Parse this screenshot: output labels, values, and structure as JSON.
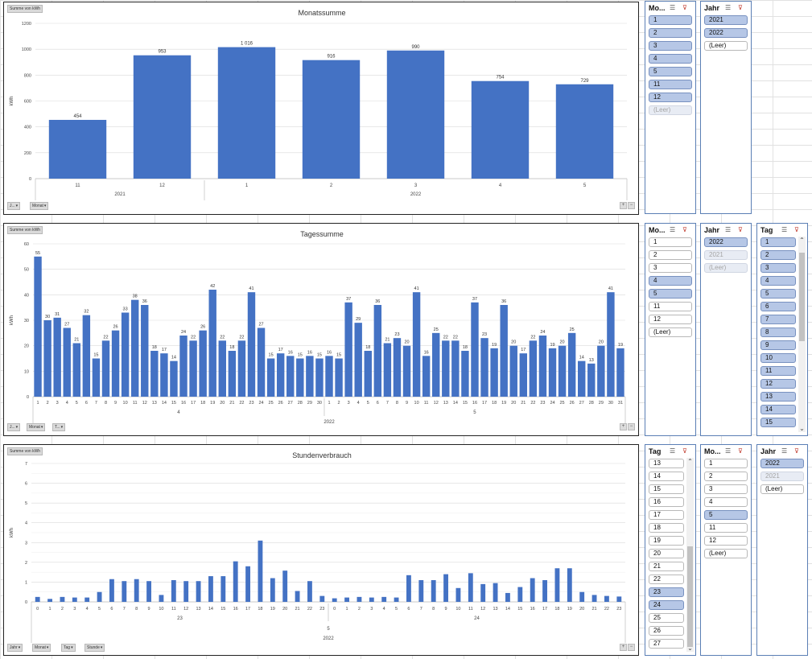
{
  "charts": [
    {
      "id": "monthly",
      "title": "Monatssumme",
      "value_button": "Summe von kWh",
      "ylabel": "kWh",
      "ylim": [
        0,
        1200
      ],
      "yticks": [
        0,
        200,
        400,
        600,
        800,
        1000,
        1200
      ],
      "field_buttons": [
        "J...",
        "Monat"
      ],
      "categories": [
        "11",
        "12",
        "1",
        "2",
        "3",
        "4",
        "5"
      ],
      "values": [
        454,
        953,
        1016,
        916,
        990,
        754,
        729
      ],
      "labels": [
        "454",
        "953",
        "1 016",
        "916",
        "990",
        "754",
        "729"
      ],
      "groups": [
        {
          "label": "2021",
          "count": 2
        },
        {
          "label": "2022",
          "count": 5
        }
      ]
    },
    {
      "id": "daily",
      "title": "Tagessumme",
      "value_button": "Summe von kWh",
      "ylabel": "kWh",
      "ylim": [
        0,
        60
      ],
      "yticks": [
        0,
        10,
        20,
        30,
        40,
        50,
        60
      ],
      "field_buttons": [
        "J...",
        "Monat",
        "T..."
      ],
      "categories": [
        "1",
        "2",
        "3",
        "4",
        "5",
        "6",
        "7",
        "8",
        "9",
        "10",
        "11",
        "12",
        "13",
        "14",
        "15",
        "16",
        "17",
        "18",
        "19",
        "20",
        "21",
        "22",
        "23",
        "24",
        "25",
        "26",
        "27",
        "28",
        "29",
        "30",
        "1",
        "2",
        "3",
        "4",
        "5",
        "6",
        "7",
        "8",
        "9",
        "10",
        "11",
        "12",
        "13",
        "14",
        "15",
        "16",
        "17",
        "18",
        "19",
        "20",
        "21",
        "22",
        "23",
        "24",
        "25",
        "26",
        "27",
        "28",
        "29",
        "30",
        "31"
      ],
      "values": [
        55,
        30,
        31,
        27,
        21,
        32,
        15,
        22,
        26,
        33,
        38,
        36,
        18,
        17,
        14,
        24,
        22,
        26,
        42,
        22,
        18,
        22,
        41,
        27,
        15,
        17,
        16,
        15,
        16,
        15,
        16,
        15,
        37,
        29,
        18,
        36,
        21,
        23,
        20,
        41,
        16,
        25,
        22,
        22,
        18,
        37,
        23,
        19,
        36,
        20,
        17,
        22,
        24,
        19,
        20,
        25,
        14,
        13,
        20,
        41,
        19
      ],
      "groups": [
        {
          "label": "4",
          "count": 30
        },
        {
          "label": "5",
          "count": 31
        }
      ],
      "top_group": "2022"
    },
    {
      "id": "hourly",
      "title": "Stundenverbrauch",
      "value_button": "Summe von kWh",
      "ylabel": "kWh",
      "ylim": [
        0,
        7
      ],
      "yticks": [
        0,
        1,
        2,
        3,
        4,
        5,
        6,
        7
      ],
      "field_buttons": [
        "Jahr",
        "Monat",
        "Tag",
        "Stunde"
      ],
      "categories": [
        "0",
        "1",
        "2",
        "3",
        "4",
        "5",
        "6",
        "7",
        "8",
        "9",
        "10",
        "11",
        "12",
        "13",
        "14",
        "15",
        "16",
        "17",
        "18",
        "19",
        "20",
        "21",
        "22",
        "23",
        "0",
        "1",
        "2",
        "3",
        "4",
        "5",
        "6",
        "7",
        "8",
        "9",
        "10",
        "11",
        "12",
        "13",
        "14",
        "15",
        "16",
        "17",
        "18",
        "19",
        "20",
        "21",
        "22",
        "23"
      ],
      "values": [
        0.25,
        0.15,
        0.25,
        0.22,
        0.22,
        0.5,
        1.15,
        1.05,
        1.15,
        1.05,
        0.35,
        1.1,
        1.05,
        1.05,
        1.3,
        1.3,
        2.05,
        1.8,
        3.1,
        1.2,
        1.58,
        0.55,
        1.05,
        0.3,
        0.18,
        0.22,
        0.25,
        0.22,
        0.25,
        0.22,
        1.35,
        1.1,
        1.1,
        1.4,
        0.7,
        1.45,
        0.9,
        0.95,
        0.45,
        0.75,
        1.2,
        1.1,
        1.7,
        1.7,
        0.5,
        0.35,
        0.3,
        0.27
      ],
      "groups": [
        {
          "label": "23",
          "count": 24
        },
        {
          "label": "24",
          "count": 24
        }
      ],
      "mid_group": "5",
      "top_group": "2022"
    }
  ],
  "slicers": [
    {
      "title": "Mo...",
      "items": [
        {
          "label": "1",
          "state": "sel"
        },
        {
          "label": "2",
          "state": "sel"
        },
        {
          "label": "3",
          "state": "sel"
        },
        {
          "label": "4",
          "state": "sel"
        },
        {
          "label": "5",
          "state": "sel"
        },
        {
          "label": "11",
          "state": "sel"
        },
        {
          "label": "12",
          "state": "sel"
        },
        {
          "label": "(Leer)",
          "state": "nodata"
        }
      ]
    },
    {
      "title": "Jahr",
      "items": [
        {
          "label": "2021",
          "state": "sel"
        },
        {
          "label": "2022",
          "state": "sel"
        },
        {
          "label": "(Leer)",
          "state": "unsel"
        }
      ]
    },
    {
      "title": "Mo...",
      "items": [
        {
          "label": "1",
          "state": "unsel"
        },
        {
          "label": "2",
          "state": "unsel"
        },
        {
          "label": "3",
          "state": "unsel"
        },
        {
          "label": "4",
          "state": "sel"
        },
        {
          "label": "5",
          "state": "sel"
        },
        {
          "label": "11",
          "state": "unsel"
        },
        {
          "label": "12",
          "state": "unsel"
        },
        {
          "label": "(Leer)",
          "state": "unsel"
        }
      ]
    },
    {
      "title": "Jahr",
      "items": [
        {
          "label": "2022",
          "state": "sel"
        },
        {
          "label": "2021",
          "state": "nodata"
        },
        {
          "label": "(Leer)",
          "state": "nodata"
        }
      ]
    },
    {
      "title": "Tag",
      "items": [
        {
          "label": "1",
          "state": "sel"
        },
        {
          "label": "2",
          "state": "sel"
        },
        {
          "label": "3",
          "state": "sel"
        },
        {
          "label": "4",
          "state": "sel"
        },
        {
          "label": "5",
          "state": "sel"
        },
        {
          "label": "6",
          "state": "sel"
        },
        {
          "label": "7",
          "state": "sel"
        },
        {
          "label": "8",
          "state": "sel"
        },
        {
          "label": "9",
          "state": "sel"
        },
        {
          "label": "10",
          "state": "sel"
        },
        {
          "label": "11",
          "state": "sel"
        },
        {
          "label": "12",
          "state": "sel"
        },
        {
          "label": "13",
          "state": "sel"
        },
        {
          "label": "14",
          "state": "sel"
        },
        {
          "label": "15",
          "state": "sel"
        }
      ]
    },
    {
      "title": "Tag",
      "items": [
        {
          "label": "13",
          "state": "unsel"
        },
        {
          "label": "14",
          "state": "unsel"
        },
        {
          "label": "15",
          "state": "unsel"
        },
        {
          "label": "16",
          "state": "unsel"
        },
        {
          "label": "17",
          "state": "unsel"
        },
        {
          "label": "18",
          "state": "unsel"
        },
        {
          "label": "19",
          "state": "unsel"
        },
        {
          "label": "20",
          "state": "unsel"
        },
        {
          "label": "21",
          "state": "unsel"
        },
        {
          "label": "22",
          "state": "unsel"
        },
        {
          "label": "23",
          "state": "sel"
        },
        {
          "label": "24",
          "state": "sel"
        },
        {
          "label": "25",
          "state": "unsel"
        },
        {
          "label": "26",
          "state": "unsel"
        },
        {
          "label": "27",
          "state": "unsel"
        }
      ]
    },
    {
      "title": "Mo...",
      "items": [
        {
          "label": "1",
          "state": "unsel"
        },
        {
          "label": "2",
          "state": "unsel"
        },
        {
          "label": "3",
          "state": "unsel"
        },
        {
          "label": "4",
          "state": "unsel"
        },
        {
          "label": "5",
          "state": "sel"
        },
        {
          "label": "11",
          "state": "unsel"
        },
        {
          "label": "12",
          "state": "unsel"
        },
        {
          "label": "(Leer)",
          "state": "unsel"
        }
      ]
    },
    {
      "title": "Jahr",
      "items": [
        {
          "label": "2022",
          "state": "sel"
        },
        {
          "label": "2021",
          "state": "nodata"
        },
        {
          "label": "(Leer)",
          "state": "unsel"
        }
      ]
    }
  ],
  "chart_data": [
    {
      "type": "bar",
      "title": "Monatssumme",
      "ylabel": "kWh",
      "ylim": [
        0,
        1200
      ],
      "categories": [
        "11 2021",
        "12 2021",
        "1 2022",
        "2 2022",
        "3 2022",
        "4 2022",
        "5 2022"
      ],
      "values": [
        454,
        953,
        1016,
        916,
        990,
        754,
        729
      ]
    },
    {
      "type": "bar",
      "title": "Tagessumme",
      "ylabel": "kWh",
      "ylim": [
        0,
        60
      ],
      "categories_note": "days of April (1-30) and May (1-31) 2022",
      "values": [
        55,
        30,
        31,
        27,
        21,
        32,
        15,
        22,
        26,
        33,
        38,
        36,
        18,
        17,
        14,
        24,
        22,
        26,
        42,
        22,
        18,
        22,
        41,
        27,
        15,
        17,
        16,
        15,
        16,
        15,
        16,
        15,
        37,
        29,
        18,
        36,
        21,
        23,
        20,
        41,
        16,
        25,
        22,
        22,
        18,
        37,
        23,
        19,
        36,
        20,
        17,
        22,
        24,
        19,
        20,
        25,
        14,
        13,
        20,
        41,
        19
      ]
    },
    {
      "type": "bar",
      "title": "Stundenverbrauch",
      "ylabel": "kWh",
      "ylim": [
        0,
        7
      ],
      "categories_note": "hours 0-23 of 23 and 24 May 2022",
      "values": [
        0.25,
        0.15,
        0.25,
        0.22,
        0.22,
        0.5,
        1.15,
        1.05,
        1.15,
        1.05,
        0.35,
        1.1,
        1.05,
        1.05,
        1.3,
        1.3,
        2.05,
        1.8,
        3.1,
        1.2,
        1.58,
        0.55,
        1.05,
        0.3,
        0.18,
        0.22,
        0.25,
        0.22,
        0.25,
        0.22,
        1.35,
        1.1,
        1.1,
        1.4,
        0.7,
        1.45,
        0.9,
        0.95,
        0.45,
        0.75,
        1.2,
        1.1,
        1.7,
        1.7,
        0.5,
        0.35,
        0.3,
        0.27
      ]
    }
  ]
}
